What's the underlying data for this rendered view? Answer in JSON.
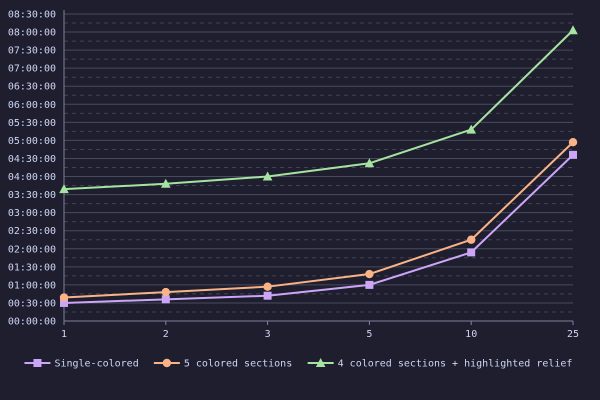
{
  "chart_data": {
    "type": "line",
    "title": "",
    "xlabel": "",
    "ylabel": "",
    "categories": [
      "1",
      "2",
      "3",
      "5",
      "10",
      "25"
    ],
    "ylim": [
      0,
      510
    ],
    "y_tick_step_minutes": 30,
    "y_minor_step_minutes": 15,
    "y_tick_labels": [
      "00:00:00",
      "00:30:00",
      "01:00:00",
      "01:30:00",
      "02:00:00",
      "02:30:00",
      "03:00:00",
      "03:30:00",
      "04:00:00",
      "04:30:00",
      "05:00:00",
      "05:30:00",
      "06:00:00",
      "06:30:00",
      "07:00:00",
      "07:30:00",
      "08:00:00",
      "08:30:00"
    ],
    "y_unit": "minutes",
    "grid": true,
    "legend_position": "bottom",
    "series": [
      {
        "name": "Single-colored",
        "color": "#cba6f7",
        "marker": "square",
        "values": [
          30,
          36,
          42,
          60,
          114,
          276
        ]
      },
      {
        "name": "5 colored sections",
        "color": "#fab387",
        "marker": "circle",
        "values": [
          39,
          48,
          57,
          78,
          135,
          297
        ]
      },
      {
        "name": "4 colored sections + highlighted relief",
        "color": "#a6e3a1",
        "marker": "triangle",
        "values": [
          219,
          228,
          240,
          262,
          318,
          483
        ]
      }
    ]
  }
}
